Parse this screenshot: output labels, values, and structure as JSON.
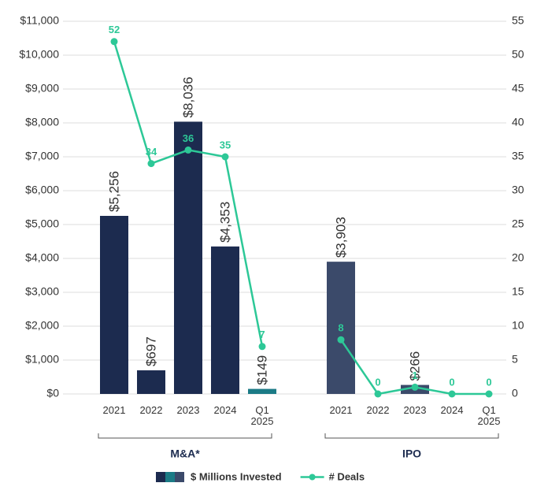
{
  "chart_data": {
    "type": "bar",
    "groups": [
      {
        "name": "M&A*",
        "categories": [
          "2021",
          "2022",
          "2023",
          "2024",
          "Q1 2025"
        ]
      },
      {
        "name": "IPO",
        "categories": [
          "2021",
          "2022",
          "2023",
          "2024",
          "Q1 2025"
        ]
      }
    ],
    "series": [
      {
        "name": "$ Millions Invested",
        "type": "bar",
        "colors": [
          [
            "#1c2b4f",
            "#1c2b4f",
            "#1c2b4f",
            "#1c2b4f",
            "#1b7b86"
          ],
          [
            "#3b4a6a",
            "#3b4a6a",
            "#3b4a6a",
            "#3b4a6a",
            "#3b4a6a"
          ]
        ],
        "values": [
          [
            5256,
            697,
            8036,
            4353,
            149
          ],
          [
            3903,
            null,
            266,
            null,
            null
          ]
        ],
        "value_labels": [
          [
            "$5,256",
            "$697",
            "$8,036",
            "$4,353",
            "$149"
          ],
          [
            "$3,903",
            null,
            "$266",
            null,
            null
          ]
        ]
      },
      {
        "name": "# Deals",
        "type": "line",
        "axis": "y2",
        "color": "#2dc897",
        "values": [
          [
            52,
            34,
            36,
            35,
            7
          ],
          [
            8,
            0,
            1,
            0,
            0
          ]
        ]
      }
    ],
    "ylim": [
      0,
      11000
    ],
    "yticks": [
      {
        "value": 0,
        "label": "$0"
      },
      {
        "value": 1000,
        "label": "$1,000"
      },
      {
        "value": 2000,
        "label": "$2,000"
      },
      {
        "value": 3000,
        "label": "$3,000"
      },
      {
        "value": 4000,
        "label": "$4,000"
      },
      {
        "value": 5000,
        "label": "$5,000"
      },
      {
        "value": 6000,
        "label": "$6,000"
      },
      {
        "value": 7000,
        "label": "$7,000"
      },
      {
        "value": 8000,
        "label": "$8,000"
      },
      {
        "value": 9000,
        "label": "$9,000"
      },
      {
        "value": 10000,
        "label": "$10,000"
      },
      {
        "value": 11000,
        "label": "$11,000"
      }
    ],
    "y2lim": [
      0,
      55
    ],
    "y2ticks": [
      0,
      5,
      10,
      15,
      20,
      25,
      30,
      35,
      40,
      45,
      50,
      55
    ],
    "grid": true
  }
}
